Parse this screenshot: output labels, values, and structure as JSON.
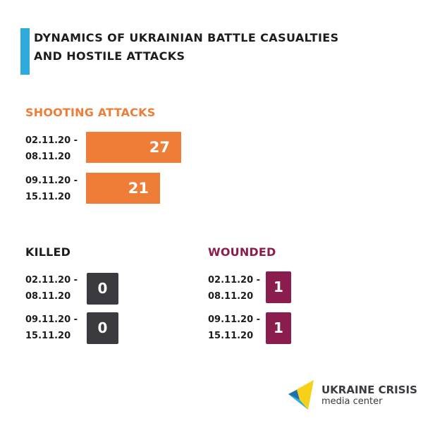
{
  "header": {
    "title_line1": "DYNAMICS OF UKRAINIAN BATTLE CASUALTIES",
    "title_line2": "AND HOSTILE ATTACKS",
    "accent_color": "#2eaadc"
  },
  "shooting": {
    "title": "SHOOTING ATTACKS",
    "color": "#ee7d37",
    "rows": [
      {
        "period_line1": "02.11.20 -",
        "period_line2": "08.11.20",
        "value": 27
      },
      {
        "period_line1": "09.11.20 -",
        "period_line2": "15.11.20",
        "value": 21
      }
    ]
  },
  "killed": {
    "title": "KILLED",
    "color": "#3a3a3f",
    "rows": [
      {
        "period_line1": "02.11.20 -",
        "period_line2": "08.11.20",
        "value": 0
      },
      {
        "period_line1": "09.11.20 -",
        "period_line2": "15.11.20",
        "value": 0
      }
    ]
  },
  "wounded": {
    "title": "WOUNDED",
    "color": "#8a1d4e",
    "rows": [
      {
        "period_line1": "02.11.20 -",
        "period_line2": "08.11.20",
        "value": 1
      },
      {
        "period_line1": "09.11.20 -",
        "period_line2": "15.11.20",
        "value": 1
      }
    ]
  },
  "logo": {
    "line1": "UKRAINE CRISIS",
    "line2": "media center"
  },
  "chart_data": [
    {
      "type": "bar",
      "title": "SHOOTING ATTACKS",
      "categories": [
        "02.11.20 - 08.11.20",
        "09.11.20 - 15.11.20"
      ],
      "values": [
        27,
        21
      ]
    },
    {
      "type": "table",
      "title": "KILLED",
      "categories": [
        "02.11.20 - 08.11.20",
        "09.11.20 - 15.11.20"
      ],
      "values": [
        0,
        0
      ]
    },
    {
      "type": "table",
      "title": "WOUNDED",
      "categories": [
        "02.11.20 - 08.11.20",
        "09.11.20 - 15.11.20"
      ],
      "values": [
        1,
        1
      ]
    }
  ]
}
